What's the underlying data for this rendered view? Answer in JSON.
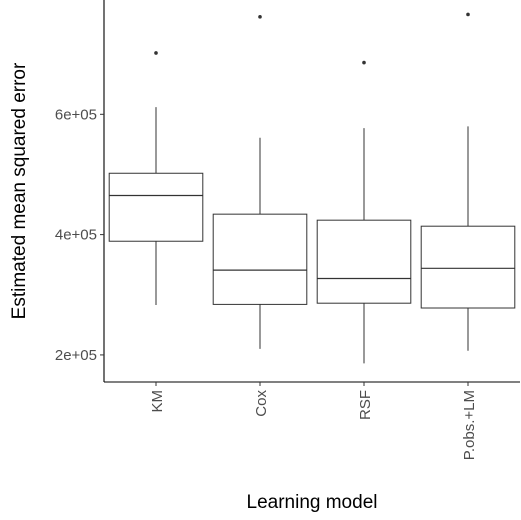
{
  "chart_data": {
    "type": "box",
    "title": "",
    "xlabel": "Learning model",
    "ylabel": "Estimated mean squared error",
    "categories": [
      "KM",
      "Cox",
      "RSF",
      "P.obs.+LM"
    ],
    "boxes": [
      {
        "category": "KM",
        "whisker_low": 283000,
        "q1": 389000,
        "median": 465000,
        "q3": 502000,
        "whisker_high": 612000,
        "outliers": [
          702000
        ]
      },
      {
        "category": "Cox",
        "whisker_low": 210000,
        "q1": 284000,
        "median": 341000,
        "q3": 434000,
        "whisker_high": 561000,
        "outliers": [
          762000
        ]
      },
      {
        "category": "RSF",
        "whisker_low": 186000,
        "q1": 286000,
        "median": 327000,
        "q3": 424000,
        "whisker_high": 577000,
        "outliers": [
          686000
        ]
      },
      {
        "category": "P.obs.+LM",
        "whisker_low": 207000,
        "q1": 278000,
        "median": 344000,
        "q3": 414000,
        "whisker_high": 580000,
        "outliers": [
          766000
        ]
      }
    ],
    "yticks": [
      200000,
      400000,
      600000
    ],
    "ytick_labels": [
      "2e+05",
      "4e+05",
      "6e+05"
    ],
    "ylim": [
      155000,
      790000
    ],
    "grid": false,
    "legend": "none",
    "colors": {
      "box_stroke": "#333333",
      "box_fill": "#ffffff",
      "axis": "#000000",
      "tick_label": "#4d4d4d"
    }
  }
}
